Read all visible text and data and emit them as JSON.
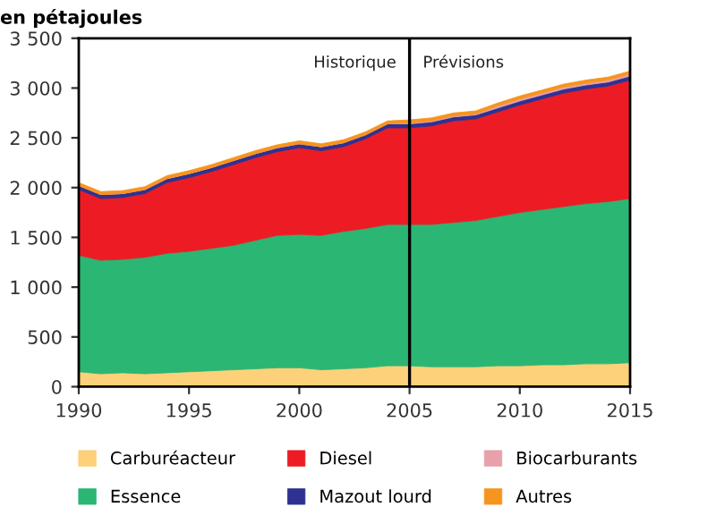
{
  "chart_data": {
    "type": "area",
    "stacked": true,
    "ylabel": "en pétajoules",
    "x": [
      1990,
      1991,
      1992,
      1993,
      1994,
      1995,
      1996,
      1997,
      1998,
      1999,
      2000,
      2001,
      2002,
      2003,
      2004,
      2005,
      2006,
      2007,
      2008,
      2009,
      2010,
      2011,
      2012,
      2013,
      2014,
      2015
    ],
    "series": [
      {
        "name": "Carburéacteur",
        "color": "#fdd17a",
        "values": [
          150,
          130,
          140,
          130,
          140,
          150,
          160,
          170,
          180,
          190,
          190,
          170,
          180,
          190,
          210,
          210,
          200,
          200,
          200,
          210,
          210,
          220,
          220,
          230,
          230,
          240
        ]
      },
      {
        "name": "Essence",
        "color": "#2bb673",
        "values": [
          1170,
          1140,
          1140,
          1170,
          1200,
          1210,
          1230,
          1250,
          1290,
          1330,
          1340,
          1350,
          1380,
          1400,
          1420,
          1420,
          1430,
          1450,
          1470,
          1500,
          1540,
          1560,
          1590,
          1610,
          1630,
          1650
        ]
      },
      {
        "name": "Diesel",
        "color": "#ed1c24",
        "values": [
          660,
          620,
          620,
          640,
          710,
          740,
          770,
          810,
          830,
          840,
          870,
          850,
          850,
          900,
          970,
          970,
          990,
          1020,
          1020,
          1050,
          1080,
          1110,
          1140,
          1150,
          1160,
          1190
        ]
      },
      {
        "name": "Mazout lourd",
        "color": "#2e3192",
        "values": [
          40,
          40,
          40,
          40,
          40,
          40,
          40,
          40,
          40,
          40,
          40,
          40,
          40,
          40,
          40,
          40,
          40,
          40,
          40,
          40,
          40,
          40,
          40,
          40,
          40,
          40
        ]
      },
      {
        "name": "Biocarburants",
        "color": "#e8a0aa",
        "values": [
          0,
          0,
          0,
          0,
          0,
          0,
          0,
          0,
          0,
          0,
          0,
          0,
          0,
          0,
          0,
          10,
          10,
          10,
          10,
          20,
          20,
          20,
          20,
          20,
          20,
          20
        ]
      },
      {
        "name": "Autres",
        "color": "#f7941d",
        "values": [
          30,
          30,
          30,
          30,
          30,
          30,
          30,
          30,
          30,
          30,
          30,
          30,
          30,
          30,
          30,
          30,
          30,
          30,
          30,
          30,
          30,
          30,
          30,
          30,
          30,
          30
        ]
      }
    ],
    "xlim": [
      1990,
      2015
    ],
    "xticks": [
      1990,
      1995,
      2000,
      2005,
      2010,
      2015
    ],
    "ylim": [
      0,
      3500
    ],
    "yticks": [
      0,
      500,
      {
        "value": 1000,
        "label": "1 000"
      },
      {
        "value": 1500,
        "label": "1 500"
      },
      {
        "value": 2000,
        "label": "2 000"
      },
      {
        "value": 2500,
        "label": "2 500"
      },
      {
        "value": 3000,
        "label": "3 000"
      },
      {
        "value": 3500,
        "label": "3 500"
      }
    ],
    "ref_lines": [
      {
        "axis": "x",
        "value": 2005,
        "color": "#000000"
      }
    ],
    "annotations": [
      {
        "text": "Historique",
        "x": 2005,
        "y": 3250
      },
      {
        "text": "Prévisions",
        "x": 2005,
        "y": 3250
      }
    ],
    "legend": "bottom",
    "grid": false
  }
}
